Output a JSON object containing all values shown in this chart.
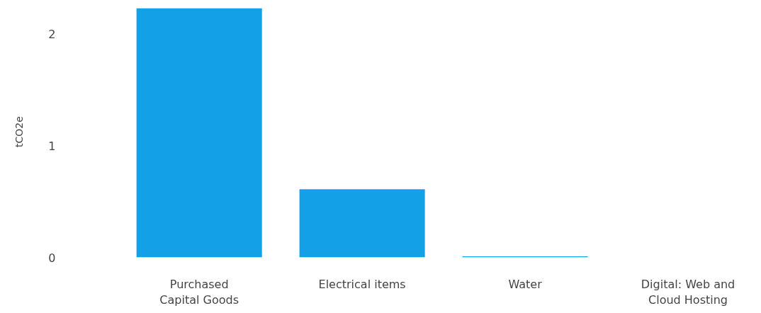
{
  "chart_data": {
    "type": "bar",
    "ylabel": "tCO2e",
    "categories": [
      "Purchased Capital Goods",
      "Electrical items",
      "Water",
      "Digital: Web and Cloud Hosting"
    ],
    "series": [
      {
        "color": "#14a0e6",
        "values": [
          2.23,
          0.61,
          0.01,
          0
        ]
      }
    ],
    "ylim": [
      0,
      2.25
    ],
    "yticks": [
      0,
      1,
      2
    ],
    "grid": false
  }
}
